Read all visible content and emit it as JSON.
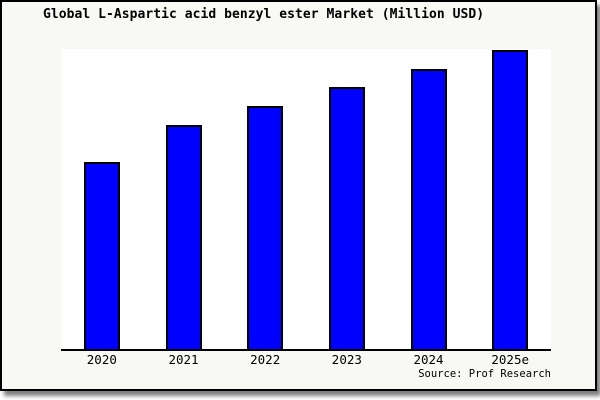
{
  "header": {
    "title": "Global L-Aspartic acid benzyl ester Market (Million USD)"
  },
  "footer": {
    "source_label": "Source: Prof Research"
  },
  "colors": {
    "bar_fill": "#0000ff",
    "bar_border": "#000000",
    "plot_background": "#ffffff",
    "frame_background": "#f8f8f5",
    "frame_border": "#000000",
    "text": "#000000"
  },
  "chart_data": {
    "type": "bar",
    "title": "Global L-Aspartic acid benzyl ester Market (Million USD)",
    "categories": [
      "2020",
      "2021",
      "2022",
      "2023",
      "2024",
      "2025e"
    ],
    "values": [
      100,
      120,
      130,
      140,
      150,
      160
    ],
    "value_axis_labels_visible": false,
    "values_are_relative_estimates_from_bar_heights": true,
    "ylim": [
      0,
      160.5
    ],
    "xlabel": "",
    "ylabel": "",
    "grid": false,
    "legend": false,
    "bar_color": "#0000ff",
    "bar_border_color": "#000000",
    "source": "Source: Prof Research"
  }
}
